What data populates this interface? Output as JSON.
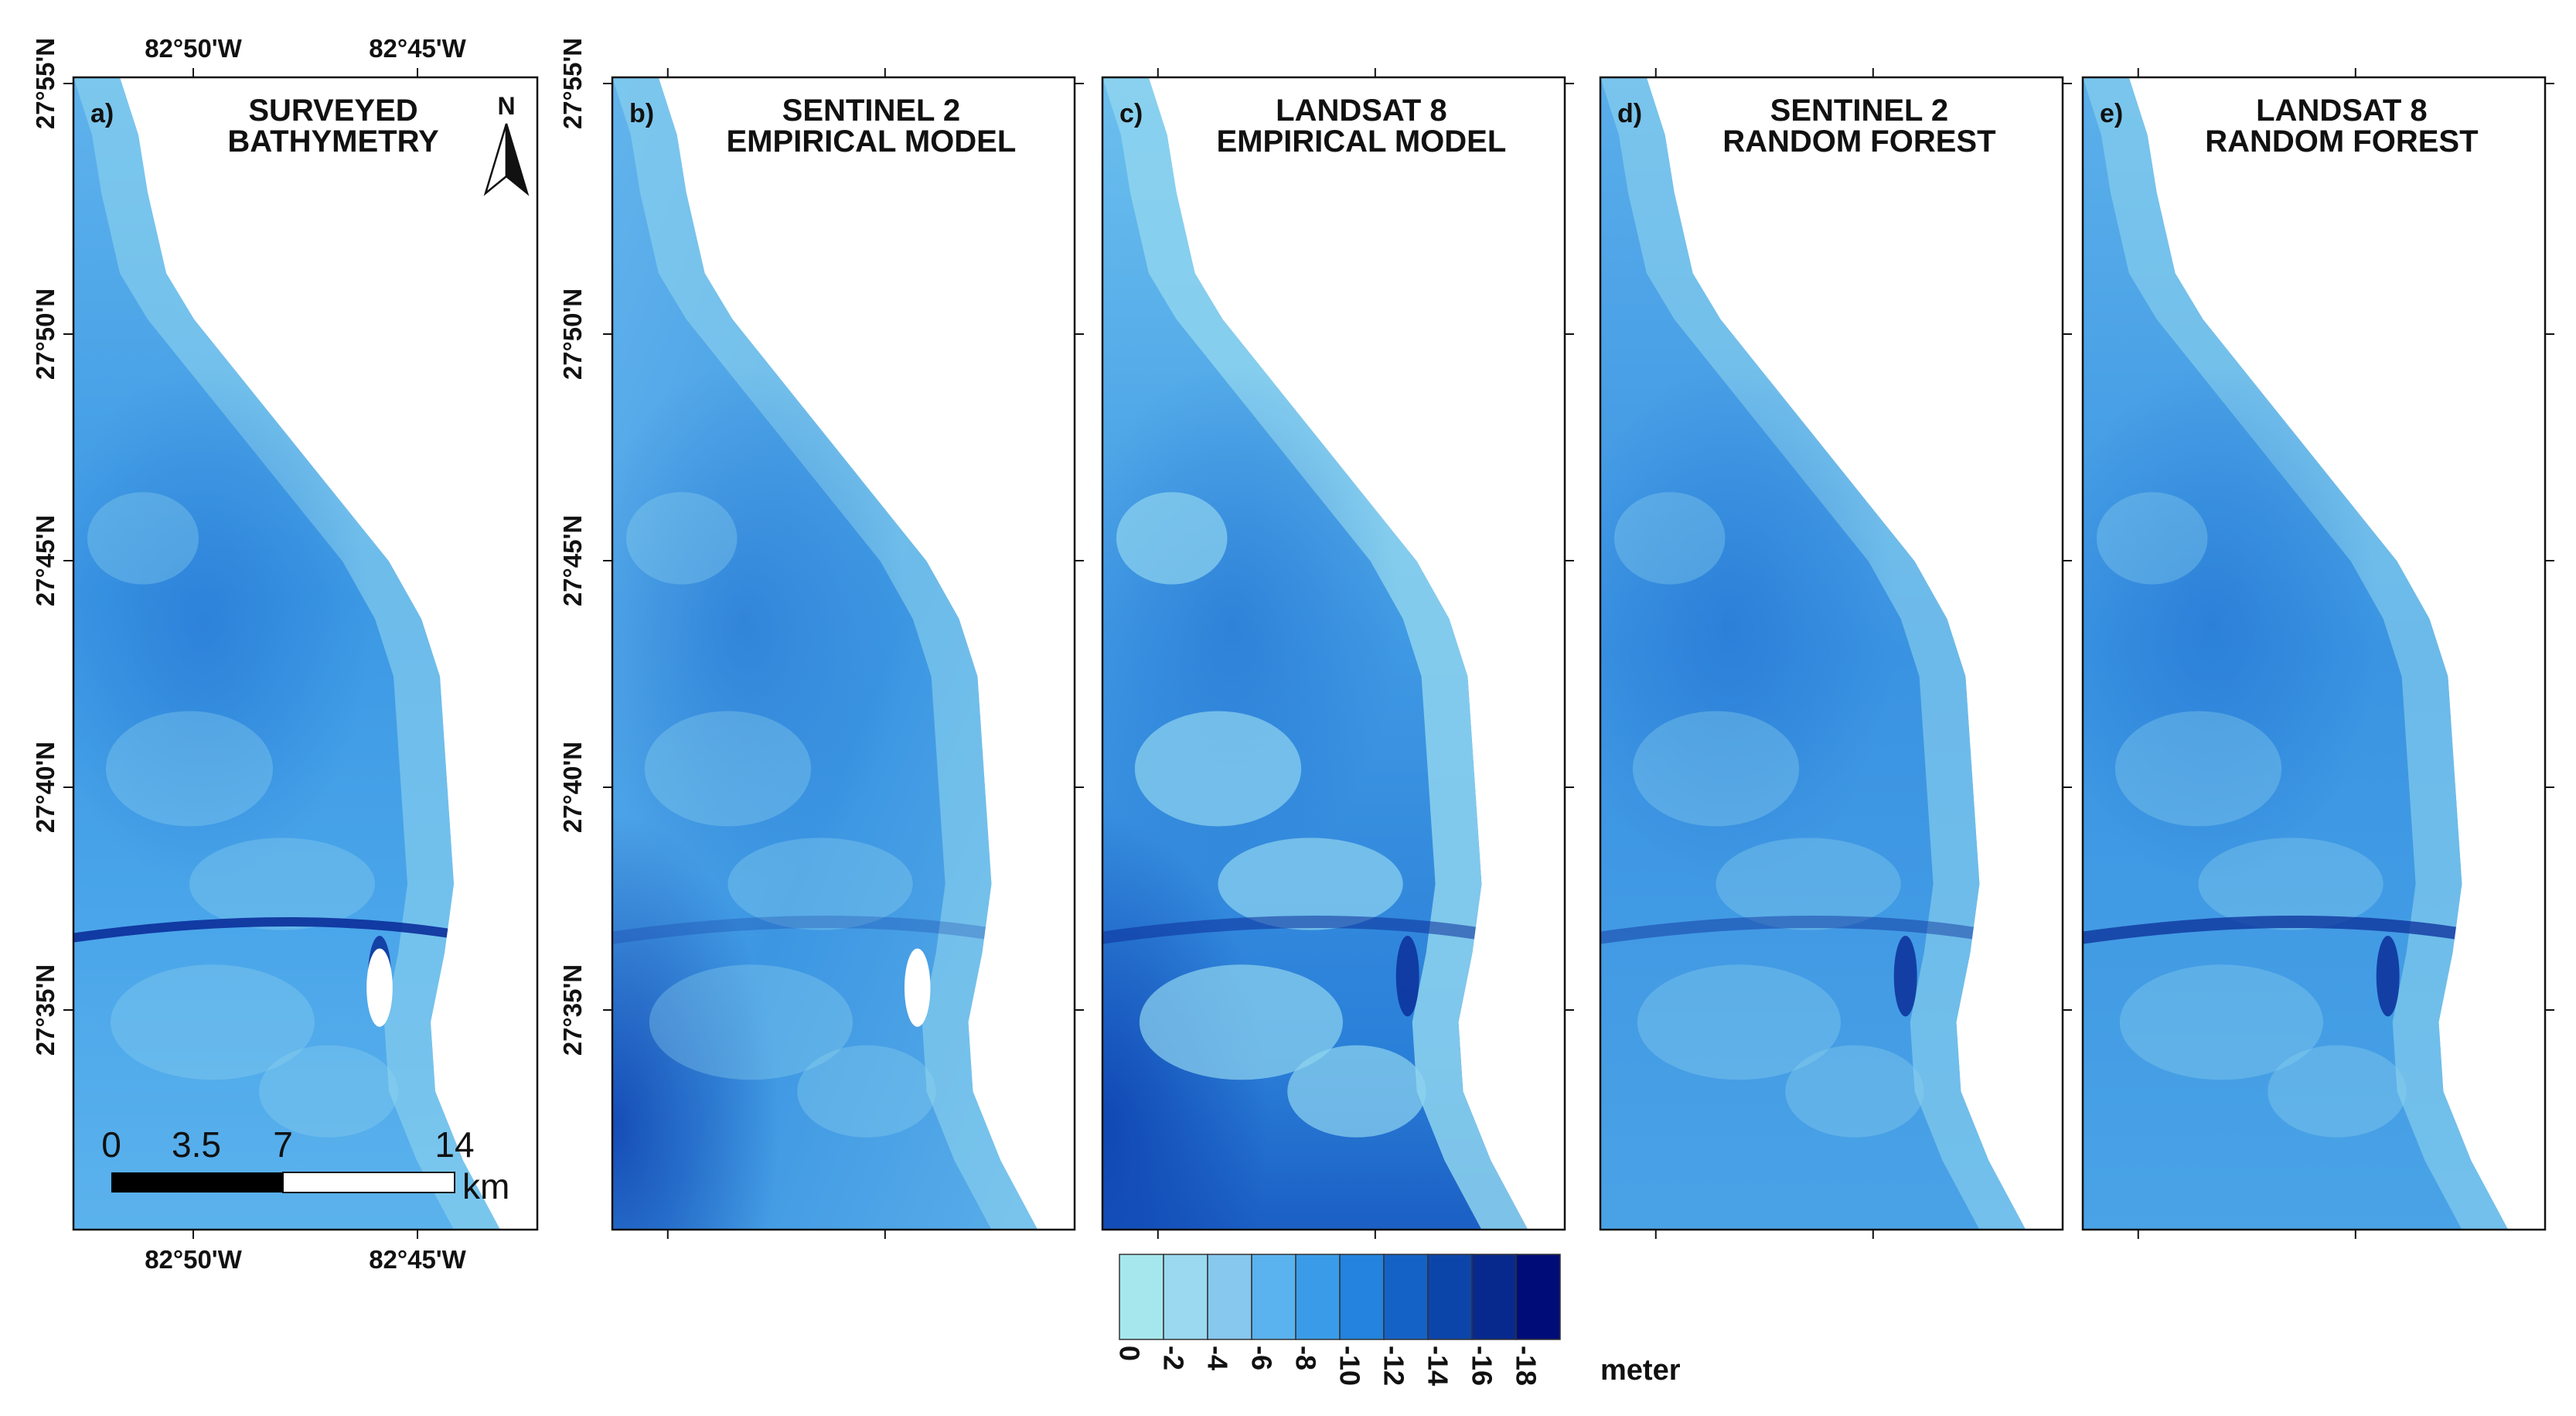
{
  "panels": [
    {
      "letter": "a)",
      "title_line1": "SURVEYED",
      "title_line2": "BATHYMETRY",
      "style": "surveyed"
    },
    {
      "letter": "b)",
      "title_line1": "SENTINEL 2",
      "title_line2": "EMPIRICAL MODEL",
      "style": "s2emp"
    },
    {
      "letter": "c)",
      "title_line1": "LANDSAT 8",
      "title_line2": "EMPIRICAL MODEL",
      "style": "l8emp"
    },
    {
      "letter": "d)",
      "title_line1": "SENTINEL 2",
      "title_line2": "RANDOM FOREST",
      "style": "s2rf"
    },
    {
      "letter": "e)",
      "title_line1": "LANDSAT 8",
      "title_line2": "RANDOM FOREST",
      "style": "l8rf"
    }
  ],
  "latitude_labels": [
    "27°55'N",
    "27°50'N",
    "27°45'N",
    "27°40'N",
    "27°35'N"
  ],
  "longitude_labels": [
    "82°50'W",
    "82°45'W"
  ],
  "north_arrow": {
    "label": "N"
  },
  "scale_bar": {
    "ticks": [
      "0",
      "3.5",
      "7",
      "14"
    ],
    "unit": "km"
  },
  "legend": {
    "unit": "meter",
    "labels": [
      "0",
      "-2",
      "-4",
      "-6",
      "-8",
      "-10",
      "-12",
      "-14",
      "-16",
      "-18"
    ],
    "colors": [
      "#a6e7ee",
      "#9ad9ef",
      "#86c8ee",
      "#5ab3ee",
      "#3a9ce8",
      "#2383de",
      "#1562c7",
      "#0c45aa",
      "#07298e",
      "#000d78"
    ]
  },
  "colors": {
    "land": "#ffffff",
    "shallow": "#8ed4ef",
    "mid": "#4aa7ea",
    "deep": "#1f72d2",
    "channel": "#0b2f9a"
  }
}
